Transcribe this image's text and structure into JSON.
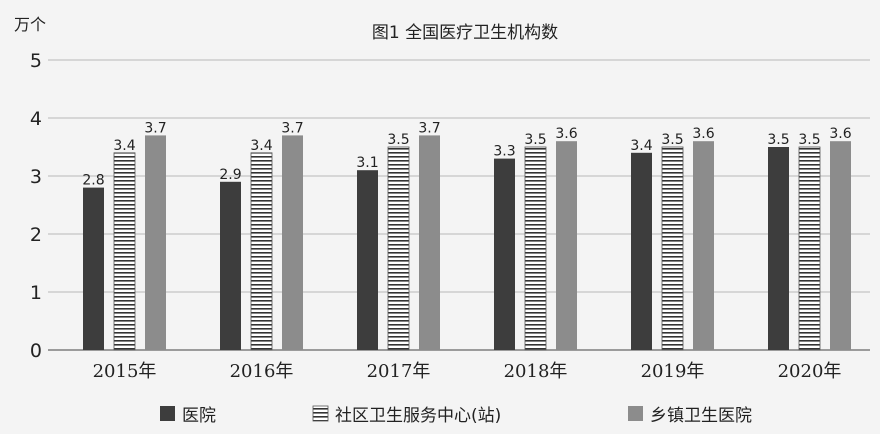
{
  "chart_data": {
    "type": "bar",
    "title": "图1   全国医疗卫生机构数",
    "ylabel": "万个",
    "xlabel": "",
    "ylim": [
      0,
      5
    ],
    "yticks": [
      0,
      1,
      2,
      3,
      4,
      5
    ],
    "grid": true,
    "legend_position": "bottom",
    "categories": [
      "2015年",
      "2016年",
      "2017年",
      "2018年",
      "2019年",
      "2020年"
    ],
    "series": [
      {
        "name": "医院",
        "values": [
          2.8,
          2.9,
          3.1,
          3.3,
          3.4,
          3.5
        ],
        "color": "#3d3d3d",
        "pattern": "solid"
      },
      {
        "name": "社区卫生服务中心(站)",
        "values": [
          3.4,
          3.4,
          3.5,
          3.5,
          3.5,
          3.5
        ],
        "color": "#ffffff",
        "pattern": "horizontal-stripes"
      },
      {
        "name": "乡镇卫生医院",
        "values": [
          3.7,
          3.7,
          3.7,
          3.6,
          3.6,
          3.6
        ],
        "color": "#8c8c8c",
        "pattern": "solid"
      }
    ]
  }
}
